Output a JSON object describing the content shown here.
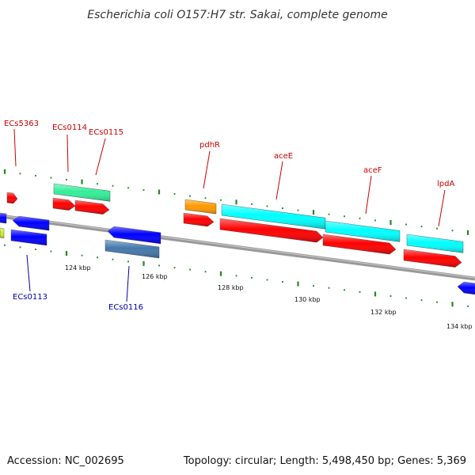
{
  "title": "Escherichia coli O157:H7 str. Sakai, complete genome",
  "footer": {
    "accession": "Accession: NC_002695",
    "topology": "Topology: circular; Length: 5,498,450 bp; Genes: 5,369"
  },
  "colors": {
    "forward_cds": "#ff0000",
    "reverse_cds": "#0000ff",
    "rRNA_like": "#00ffff",
    "tRNA_like": "#33ee99",
    "other_feature": "#ff9900",
    "steel_feature": "#4477aa",
    "backbone": "#888888",
    "gc_ticks": "#228822",
    "forward_label": "#cc0000",
    "reverse_label": "#0000aa"
  },
  "forward_labels": [
    "ECs5363",
    "ECs0114",
    "ECs0115",
    "pdhR",
    "aceE",
    "aceF",
    "lpdA"
  ],
  "reverse_labels": [
    "ECs0113",
    "ECs0116"
  ],
  "ruler_labels": [
    "124 kbp",
    "126 kbp",
    "128 kbp",
    "130 kbp",
    "132 kbp",
    "134 kbp"
  ]
}
